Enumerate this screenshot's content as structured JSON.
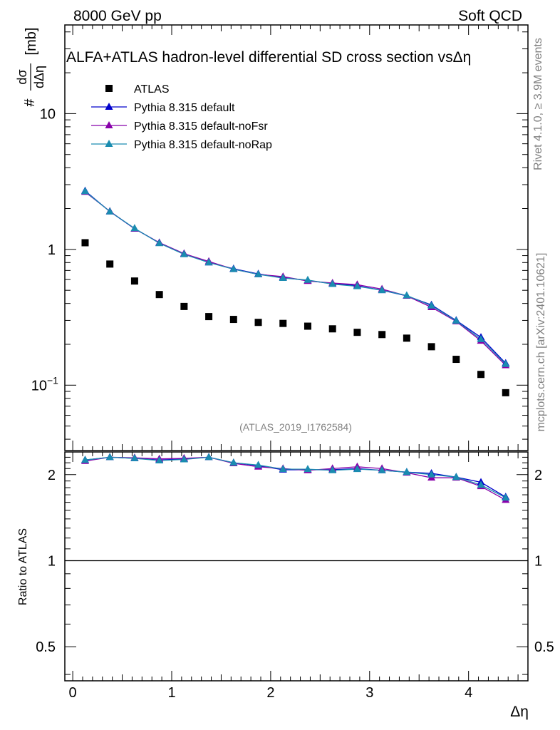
{
  "header": {
    "left": "8000 GeV pp",
    "right": "Soft QCD"
  },
  "side": {
    "rivet": "Rivet 4.1.0, ≥ 3.9M events",
    "mcplots": "mcplots.cern.ch [arXiv:2401.10621]"
  },
  "chart_data": {
    "type": "scatter",
    "title": "ALFA+ATLAS hadron-level differential SD cross section vsΔη",
    "analysis": "(ATLAS_2019_I1762584)",
    "ylabel": {
      "prefix": "#",
      "num": "dσ",
      "den": "dΔη",
      "unit": "[mb]"
    },
    "xlabel": "Δη",
    "ratio_ylabel": "Ratio to ATLAS",
    "xlim": [
      -0.08,
      4.6
    ],
    "ylim": [
      0.033,
      45
    ],
    "ylog": true,
    "ratio_ylim": [
      0.38,
      2.4
    ],
    "ratio_ylog": true,
    "xticks": [
      0,
      1,
      2,
      3,
      4
    ],
    "yticks": [
      {
        "v": 0.1,
        "label": "10",
        "sup": "−1"
      },
      {
        "v": 1,
        "label": "1"
      },
      {
        "v": 10,
        "label": "10"
      }
    ],
    "ratio_yticks": [
      {
        "v": 0.5,
        "label": "0.5"
      },
      {
        "v": 1,
        "label": "1"
      },
      {
        "v": 2,
        "label": "2"
      }
    ],
    "x": [
      0.125,
      0.375,
      0.625,
      0.875,
      1.125,
      1.375,
      1.625,
      1.875,
      2.125,
      2.375,
      2.625,
      2.875,
      3.125,
      3.375,
      3.625,
      3.875,
      4.125,
      4.375
    ],
    "series": [
      {
        "name": "ATLAS",
        "color": "#000000",
        "marker": "square",
        "values": [
          1.12,
          0.78,
          0.585,
          0.465,
          0.38,
          0.32,
          0.305,
          0.29,
          0.285,
          0.272,
          0.26,
          0.245,
          0.236,
          0.222,
          0.192,
          0.155,
          0.12,
          0.088
        ]
      },
      {
        "name": "Pythia 8.315 default",
        "color": "#0000cc",
        "marker": "triangle",
        "values": [
          2.7,
          1.9,
          1.42,
          1.12,
          0.93,
          0.8,
          0.72,
          0.66,
          0.62,
          0.59,
          0.56,
          0.54,
          0.5,
          0.455,
          0.39,
          0.3,
          0.225,
          0.145
        ]
      },
      {
        "name": "Pythia 8.315 default-noFsr",
        "color": "#8800aa",
        "marker": "triangle",
        "values": [
          2.65,
          1.91,
          1.42,
          1.12,
          0.93,
          0.815,
          0.715,
          0.655,
          0.63,
          0.585,
          0.565,
          0.55,
          0.51,
          0.455,
          0.375,
          0.295,
          0.212,
          0.14
        ]
      },
      {
        "name": "Pythia 8.315 default-noRap",
        "color": "#1a8cb0",
        "marker": "triangle",
        "values": [
          2.68,
          1.9,
          1.43,
          1.11,
          0.92,
          0.8,
          0.715,
          0.655,
          0.615,
          0.595,
          0.555,
          0.535,
          0.5,
          0.458,
          0.385,
          0.298,
          0.218,
          0.143
        ]
      }
    ],
    "ratios": [
      {
        "name": "Pythia 8.315 default",
        "color": "#0000cc",
        "values": [
          2.25,
          2.3,
          2.28,
          2.25,
          2.27,
          2.3,
          2.2,
          2.15,
          2.08,
          2.08,
          2.08,
          2.1,
          2.07,
          2.04,
          2.02,
          1.96,
          1.88,
          1.67
        ]
      },
      {
        "name": "Pythia 8.315 default-noFsr",
        "color": "#8800aa",
        "values": [
          2.23,
          2.3,
          2.29,
          2.27,
          2.28,
          2.3,
          2.19,
          2.13,
          2.1,
          2.07,
          2.1,
          2.13,
          2.1,
          2.03,
          1.95,
          1.95,
          1.82,
          1.63
        ]
      },
      {
        "name": "Pythia 8.315 default-noRap",
        "color": "#1a8cb0",
        "values": [
          2.25,
          2.3,
          2.28,
          2.24,
          2.26,
          2.3,
          2.2,
          2.16,
          2.09,
          2.09,
          2.07,
          2.09,
          2.07,
          2.04,
          2.0,
          1.96,
          1.84,
          1.66
        ]
      }
    ],
    "legend": "top-left"
  }
}
